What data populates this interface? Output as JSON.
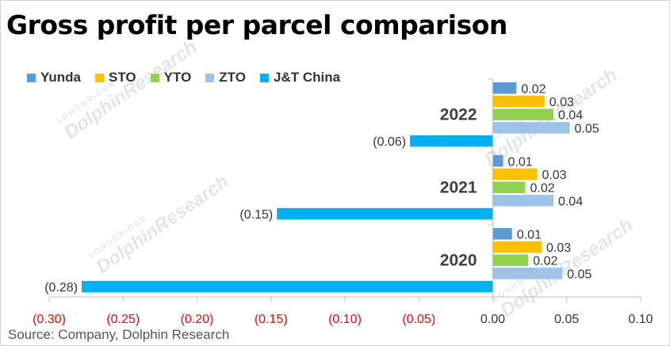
{
  "title": "Gross profit per parcel comparison",
  "source": "Source: Company, Dolphin Research",
  "watermark": {
    "line1": "LONGBRIDGE",
    "line2": "DolphinResearch"
  },
  "chart_data": {
    "type": "bar",
    "orientation": "horizontal",
    "categories": [
      "2022",
      "2021",
      "2020"
    ],
    "series": [
      {
        "name": "Yunda",
        "color": "#5b9bd5",
        "values": [
          0.02,
          0.01,
          0.01
        ],
        "labels": [
          "0.02",
          "0.01",
          "0.01"
        ],
        "plot_values": [
          0.016,
          0.007,
          0.013
        ]
      },
      {
        "name": "STO",
        "color": "#ffc000",
        "values": [
          0.03,
          0.03,
          0.03
        ],
        "labels": [
          "0.03",
          "0.03",
          "0.03"
        ],
        "plot_values": [
          0.035,
          0.03,
          0.033
        ]
      },
      {
        "name": "YTO",
        "color": "#92d050",
        "values": [
          0.04,
          0.02,
          0.02
        ],
        "labels": [
          "0.04",
          "0.02",
          "0.02"
        ],
        "plot_values": [
          0.041,
          0.022,
          0.024
        ]
      },
      {
        "name": "ZTO",
        "color": "#9dc3e6",
        "values": [
          0.05,
          0.04,
          0.05
        ],
        "labels": [
          "0.05",
          "0.04",
          "0.05"
        ],
        "plot_values": [
          0.052,
          0.041,
          0.047
        ]
      },
      {
        "name": "J&T China",
        "color": "#00b0f0",
        "values": [
          -0.06,
          -0.15,
          -0.28
        ],
        "labels": [
          "(0.06)",
          "(0.15)",
          "(0.28)"
        ],
        "plot_values": [
          -0.056,
          -0.146,
          -0.278
        ]
      }
    ],
    "xlim": [
      -0.3,
      0.1
    ],
    "xticks": [
      -0.3,
      -0.25,
      -0.2,
      -0.15,
      -0.1,
      -0.05,
      0.0,
      0.05,
      0.1
    ],
    "xtick_labels": [
      "(0.30)",
      "(0.25)",
      "(0.20)",
      "(0.15)",
      "(0.10)",
      "(0.05)",
      "0.00",
      "0.05",
      "0.10"
    ],
    "negative_tick_color": "#ff0000",
    "positive_tick_color": "#333333",
    "legend_position": "top-left",
    "grid": false
  }
}
